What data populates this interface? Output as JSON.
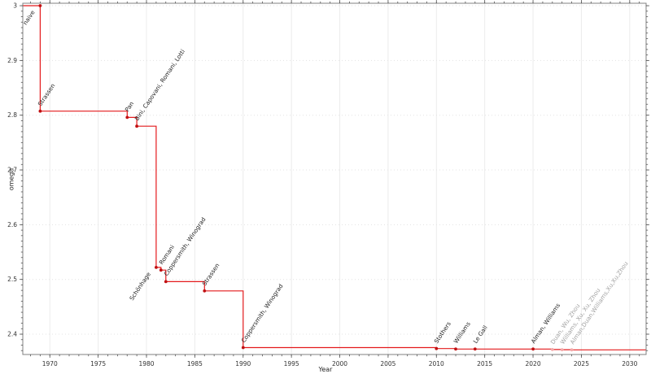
{
  "chart_data": {
    "type": "line",
    "subtype": "step-post",
    "title": "",
    "xlabel": "Year",
    "ylabel": "omega",
    "xlim": [
      1967.2,
      2031.7
    ],
    "ylim": [
      2.3629,
      3.0045
    ],
    "x_major_ticks": [
      1970,
      1975,
      1980,
      1985,
      1990,
      1995,
      2000,
      2005,
      2010,
      2015,
      2020,
      2025,
      2030
    ],
    "y_major_ticks": [
      2.4,
      2.5,
      2.6,
      2.7,
      2.8,
      2.9,
      3
    ],
    "x_minor_step_years": 1,
    "y_minor_step": 0.01,
    "grid": true,
    "legend": "none",
    "colors": {
      "line": "#e41a1c",
      "marker": "#c01012",
      "marker_faded": "#f2a9a9",
      "label": "#1f1f1f",
      "label_faded": "#a3a3a3",
      "grid_x": "#ececec",
      "grid_y": "#e3e3e3",
      "spine": "#808080",
      "tick": "#555555",
      "tick_label": "#333333"
    },
    "points": [
      {
        "label": "naive",
        "year": 1969,
        "omega": 3.0,
        "label_dir": "down",
        "faded": false
      },
      {
        "label": "Strassen",
        "year": 1969,
        "omega": 2.8074,
        "label_dir": "up",
        "faded": false
      },
      {
        "label": "Pan",
        "year": 1978,
        "omega": 2.796,
        "label_dir": "up",
        "faded": false
      },
      {
        "label": "Bini, Capovani, Romani, Lotti",
        "year": 1979,
        "omega": 2.78,
        "label_dir": "up",
        "faded": false
      },
      {
        "label": "Schönhage",
        "year": 1981,
        "omega": 2.522,
        "label_dir": "down",
        "faded": false
      },
      {
        "label": "Romani",
        "year": 1981.5,
        "omega": 2.517,
        "label_dir": "up",
        "faded": false
      },
      {
        "label": "Coppersmith, Winograd",
        "year": 1982,
        "omega": 2.496,
        "label_dir": "up",
        "faded": false
      },
      {
        "label": "Strassen",
        "year": 1986,
        "omega": 2.479,
        "label_dir": "up",
        "faded": false
      },
      {
        "label": "Coppersmith, Winograd",
        "year": 1990,
        "omega": 2.3755,
        "label_dir": "up",
        "faded": false
      },
      {
        "label": "Stothers",
        "year": 2010,
        "omega": 2.3737,
        "label_dir": "up",
        "faded": false
      },
      {
        "label": "Williams",
        "year": 2012,
        "omega": 2.3729,
        "label_dir": "up",
        "faded": false
      },
      {
        "label": "Le Gall",
        "year": 2014,
        "omega": 2.3729,
        "label_dir": "up",
        "faded": false
      },
      {
        "label": "Alman, Williams",
        "year": 2020,
        "omega": 2.3728,
        "label_dir": "up",
        "faded": false
      },
      {
        "label": "Duan, Wu, Zhou",
        "year": 2022,
        "omega": 2.3719,
        "label_dir": "up",
        "faded": true
      },
      {
        "label": "Williams, Xu, Xu, Zhou",
        "year": 2023,
        "omega": 2.3716,
        "label_dir": "up",
        "faded": true
      },
      {
        "label": "Alman,Duan,Williams,Xu,Xu,Zhou",
        "year": 2024,
        "omega": 2.3713,
        "label_dir": "up",
        "faded": true
      }
    ]
  }
}
